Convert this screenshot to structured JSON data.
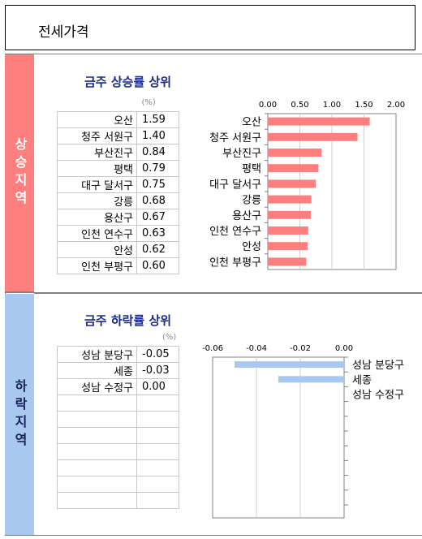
{
  "page": {
    "title": "전세가격"
  },
  "bands": {
    "up": "상승지역",
    "down": "하락지역"
  },
  "rise": {
    "title": "금주 상승률 상위",
    "unit": "(%)",
    "rows": [
      {
        "name": "오산",
        "value": "1.59"
      },
      {
        "name": "청주 서원구",
        "value": "1.40"
      },
      {
        "name": "부산진구",
        "value": "0.84"
      },
      {
        "name": "평택",
        "value": "0.79"
      },
      {
        "name": "대구 달서구",
        "value": "0.75"
      },
      {
        "name": "강릉",
        "value": "0.68"
      },
      {
        "name": "용산구",
        "value": "0.67"
      },
      {
        "name": "인천 연수구",
        "value": "0.63"
      },
      {
        "name": "안성",
        "value": "0.62"
      },
      {
        "name": "인천 부평구",
        "value": "0.60"
      }
    ]
  },
  "fall": {
    "title": "금주 하락률 상위",
    "unit": "(%)",
    "rows": [
      {
        "name": "성남 분당구",
        "value": "-0.05"
      },
      {
        "name": "세종",
        "value": "-0.03"
      },
      {
        "name": "성남 수정구",
        "value": "0.00"
      },
      {
        "name": "",
        "value": ""
      },
      {
        "name": "",
        "value": ""
      },
      {
        "name": "",
        "value": ""
      },
      {
        "name": "",
        "value": ""
      },
      {
        "name": "",
        "value": ""
      },
      {
        "name": "",
        "value": ""
      },
      {
        "name": "",
        "value": ""
      }
    ]
  },
  "chart_data": [
    {
      "type": "bar",
      "orientation": "horizontal",
      "categories": [
        "오산",
        "청주 서원구",
        "부산진구",
        "평택",
        "대구 달서구",
        "강릉",
        "용산구",
        "인천 연수구",
        "안성",
        "인천 부평구"
      ],
      "values": [
        1.59,
        1.4,
        0.84,
        0.79,
        0.75,
        0.68,
        0.67,
        0.63,
        0.62,
        0.6
      ],
      "xlim": [
        0,
        2
      ],
      "ticks": [
        "0.00",
        "0.50",
        "1.00",
        "1.50",
        "2.00"
      ],
      "tick_values": [
        0,
        0.5,
        1,
        1.5,
        2
      ],
      "bar_color": "#ff7f7f",
      "grid": true
    },
    {
      "type": "bar",
      "orientation": "horizontal",
      "categories": [
        "성남 분당구",
        "세종",
        "성남 수정구"
      ],
      "values": [
        -0.05,
        -0.03,
        0.0
      ],
      "xlim": [
        -0.06,
        0
      ],
      "ticks": [
        "-0.06",
        "-0.04",
        "-0.02",
        "0.00"
      ],
      "tick_values": [
        -0.06,
        -0.04,
        -0.02,
        0
      ],
      "bar_color": "#a8c8ef",
      "grid": true
    }
  ]
}
